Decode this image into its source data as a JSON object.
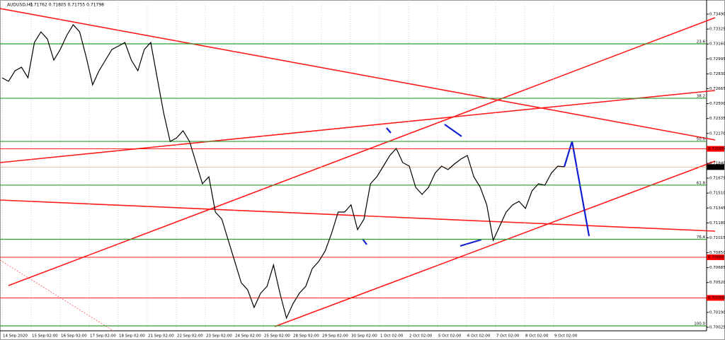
{
  "chart_data": {
    "type": "line",
    "title": "AUDUSD,H1",
    "ohlc": "0.71762 0.71805 0.71755 0.71798",
    "color": "#000000",
    "values": [
      0.72786,
      0.72747,
      0.72864,
      0.72903,
      0.72786,
      0.73177,
      0.73294,
      0.73216,
      0.72982,
      0.73099,
      0.73255,
      0.73373,
      0.73294,
      0.73021,
      0.72708,
      0.72864,
      0.72982,
      0.73099,
      0.73138,
      0.73177,
      0.72982,
      0.72864,
      0.73099,
      0.73177,
      0.72786,
      0.72395,
      0.72082,
      0.72121,
      0.722,
      0.72082,
      0.71848,
      0.71613,
      0.71691,
      0.713,
      0.71222,
      0.70988,
      0.70753,
      0.70518,
      0.7044,
      0.70245,
      0.70401,
      0.70479,
      0.70714,
      0.70401,
      0.70127,
      0.70284,
      0.70401,
      0.70479,
      0.70675,
      0.70753,
      0.7087,
      0.71066,
      0.713,
      0.713,
      0.71379,
      0.71105,
      0.71222,
      0.71613,
      0.71691,
      0.71809,
      0.71926,
      0.72004,
      0.71848,
      0.71809,
      0.71574,
      0.71496,
      0.71574,
      0.7173,
      0.71809,
      0.7177,
      0.71832,
      0.71887,
      0.71926,
      0.71691,
      0.71574,
      0.71379,
      0.70988,
      0.71144,
      0.713,
      0.71379,
      0.71418,
      0.7134,
      0.71535,
      0.71613,
      0.71598,
      0.7173,
      0.71809,
      0.71801
    ],
    "time_labels": [
      "14 Sep 2020",
      "15 Sep 02:00",
      "16 Sep 02:00",
      "17 Sep 02:00",
      "18 Sep 02:00",
      "21 Sep 02:00",
      "22 Sep 02:00",
      "23 Sep 02:00",
      "24 Sep 02:00",
      "25 Sep 02:00",
      "28 Sep 02:00",
      "29 Sep 02:00",
      "30 Sep 02:00",
      "1 Oct 02:00",
      "2 Oct 02:00",
      "5 Oct 02:00",
      "6 Oct 02:00",
      "7 Oct 02:00",
      "8 Oct 02:00",
      "9 Oct 02:00"
    ],
    "ylim": [
      0.69986,
      0.73553
    ],
    "yticks": [
      {
        "value": 0.7349,
        "label": "0.73490"
      },
      {
        "value": 0.73325,
        "label": "0.73325"
      },
      {
        "value": 0.7316,
        "label": "0.73160"
      },
      {
        "value": 0.72995,
        "label": "0.72995"
      },
      {
        "value": 0.7283,
        "label": "0.72830"
      },
      {
        "value": 0.72665,
        "label": "0.72665"
      },
      {
        "value": 0.725,
        "label": "0.72500"
      },
      {
        "value": 0.72335,
        "label": "0.72335"
      },
      {
        "value": 0.7217,
        "label": "0.72170"
      },
      {
        "value": 0.72005,
        "label": "0.72005"
      },
      {
        "value": 0.7184,
        "label": "0.71840"
      },
      {
        "value": 0.71675,
        "label": "0.71675"
      },
      {
        "value": 0.7151,
        "label": "0.71510"
      },
      {
        "value": 0.71345,
        "label": "0.71345"
      },
      {
        "value": 0.7118,
        "label": "0.71180"
      },
      {
        "value": 0.71015,
        "label": "0.71015"
      },
      {
        "value": 0.7085,
        "label": "0.70850"
      },
      {
        "value": 0.70685,
        "label": "0.70685"
      },
      {
        "value": 0.7052,
        "label": "0.70520"
      },
      {
        "value": 0.70355,
        "label": "0.70355"
      },
      {
        "value": 0.7019,
        "label": "0.70190"
      },
      {
        "value": 0.70025,
        "label": "0.70025"
      }
    ],
    "fib_levels": [
      {
        "value": 0.73162,
        "label": "23.6"
      },
      {
        "value": 0.72559,
        "label": "38.2"
      },
      {
        "value": 0.72082,
        "label": "50.0"
      },
      {
        "value": 0.71598,
        "label": "61.8"
      },
      {
        "value": 0.70999,
        "label": "76.4"
      },
      {
        "value": 0.70041,
        "label": "100.0"
      }
    ],
    "fib_color": "#2e9e2e",
    "price_lines": [
      {
        "value": 0.72,
        "label": "0.72000"
      },
      {
        "value": 0.708,
        "label": "0.70800"
      },
      {
        "value": 0.7035,
        "label": "0.70350"
      }
    ],
    "price_line_color": "#ff0000",
    "current_price": {
      "value": 0.71798,
      "label": "0.71798"
    }
  }
}
